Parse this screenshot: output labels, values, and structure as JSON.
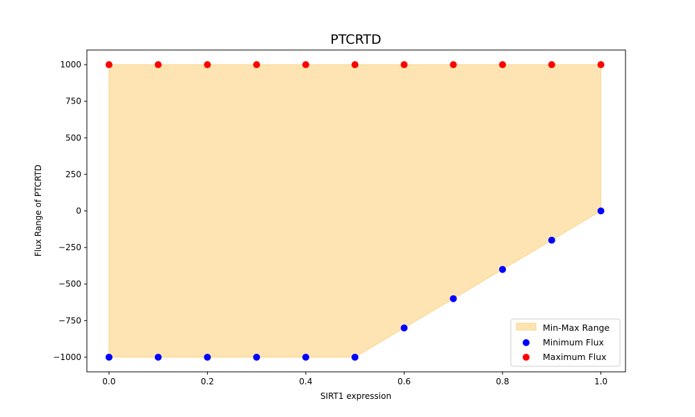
{
  "chart_data": {
    "type": "scatter",
    "title": "PTCRTD",
    "xlabel": "SIRT1 expression",
    "ylabel": "Flux Range of PTCRTD",
    "xlim": [
      -0.045,
      1.05
    ],
    "ylim": [
      -1100,
      1100
    ],
    "xticks": [
      0.0,
      0.2,
      0.4,
      0.6,
      0.8,
      1.0
    ],
    "xtick_labels": [
      "0.0",
      "0.2",
      "0.4",
      "0.6",
      "0.8",
      "1.0"
    ],
    "yticks": [
      1000,
      750,
      500,
      250,
      0,
      -250,
      -500,
      -750,
      -1000
    ],
    "ytick_labels": [
      "1000",
      "750",
      "500",
      "250",
      "0",
      "−250",
      "−500",
      "−750",
      "−1000"
    ],
    "x": [
      0.0,
      0.1,
      0.2,
      0.3,
      0.4,
      0.5,
      0.6,
      0.7,
      0.8,
      0.9,
      1.0
    ],
    "series": [
      {
        "name": "Minimum Flux",
        "color": "#0000ff",
        "values": [
          -1000,
          -1000,
          -1000,
          -1000,
          -1000,
          -1000,
          -800,
          -600,
          -400,
          -200,
          0
        ]
      },
      {
        "name": "Maximum Flux",
        "color": "#ff0000",
        "values": [
          1000,
          1000,
          1000,
          1000,
          1000,
          1000,
          1000,
          1000,
          1000,
          1000,
          1000
        ]
      }
    ],
    "fill": {
      "name": "Min-Max Range",
      "color": "#fde4b2",
      "edge_color": "#f9d58c"
    },
    "legend": {
      "placement": "lower-right",
      "entries": [
        "Min-Max Range",
        "Minimum Flux",
        "Maximum Flux"
      ]
    },
    "grid": false
  }
}
